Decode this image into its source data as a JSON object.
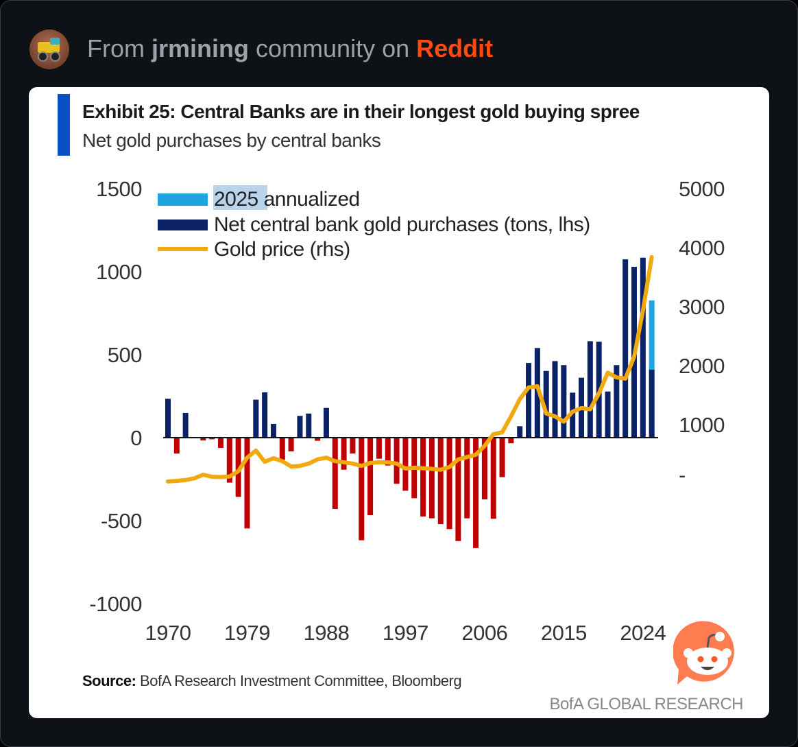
{
  "header": {
    "prefix": "From",
    "community": "jrmining",
    "middle": "community on",
    "platform": "Reddit"
  },
  "colors": {
    "positive": "#0c2266",
    "negative": "#c00000",
    "annualized": "#1ea5e0",
    "gold": "#f0aa10",
    "accent": "#0b4fc4",
    "reddit": "#ff4a12"
  },
  "chart_data": {
    "type": "bar",
    "title": "Exhibit 25: Central Banks are in their longest gold buying spree",
    "subtitle": "Net gold purchases by central banks",
    "x_ticks": [
      "1970",
      "1979",
      "1988",
      "1997",
      "2006",
      "2015",
      "2024"
    ],
    "y_left_ticks": [
      "1500",
      "1000",
      "500",
      "0",
      "-500",
      "-1000"
    ],
    "y_right_ticks": [
      "5000",
      "4000",
      "3000",
      "2000",
      "1000",
      "-"
    ],
    "ylim_left": [
      -1000,
      1500
    ],
    "ylim_right": [
      0,
      5000
    ],
    "legend": [
      {
        "name": "2025 annualized",
        "kind": "bar"
      },
      {
        "name": "Net central bank gold purchases (tons, lhs)",
        "kind": "bar"
      },
      {
        "name": "Gold price (rhs)",
        "kind": "line"
      }
    ],
    "legend_placement": "top-left",
    "years": [
      1970,
      1971,
      1972,
      1973,
      1974,
      1975,
      1976,
      1977,
      1978,
      1979,
      1980,
      1981,
      1982,
      1983,
      1984,
      1985,
      1986,
      1987,
      1988,
      1989,
      1990,
      1991,
      1992,
      1993,
      1994,
      1995,
      1996,
      1997,
      1998,
      1999,
      2000,
      2001,
      2002,
      2003,
      2004,
      2005,
      2006,
      2007,
      2008,
      2009,
      2010,
      2011,
      2012,
      2013,
      2014,
      2015,
      2016,
      2017,
      2018,
      2019,
      2020,
      2021,
      2022,
      2023,
      2024,
      2025
    ],
    "series": [
      {
        "name": "Net central bank gold purchases (tons, lhs)",
        "axis": "left",
        "values": [
          234,
          -96,
          149,
          0,
          -17,
          -10,
          -62,
          -271,
          -357,
          -547,
          229,
          273,
          83,
          -134,
          -83,
          131,
          145,
          -19,
          179,
          -430,
          -193,
          -96,
          -618,
          -467,
          -127,
          -168,
          -278,
          -320,
          -365,
          -475,
          -486,
          -521,
          -551,
          -623,
          -486,
          -665,
          -372,
          -489,
          -238,
          -34,
          69,
          450,
          540,
          402,
          461,
          437,
          271,
          361,
          581,
          578,
          278,
          437,
          1074,
          1029,
          1084,
          409
        ]
      },
      {
        "name": "2025 annualized",
        "axis": "left",
        "years": [
          2025
        ],
        "values": [
          826
        ]
      },
      {
        "name": "Gold price (rhs)",
        "axis": "right",
        "values": [
          36,
          45,
          60,
          90,
          150,
          115,
          110,
          120,
          210,
          440,
          560,
          370,
          430,
          380,
          290,
          300,
          340,
          410,
          440,
          380,
          360,
          340,
          300,
          350,
          360,
          360,
          340,
          256,
          270,
          260,
          250,
          235,
          280,
          410,
          450,
          490,
          640,
          837,
          870,
          1140,
          1430,
          1630,
          1650,
          1190,
          1140,
          1050,
          1220,
          1280,
          1260,
          1530,
          1880,
          1800,
          1780,
          2150,
          2930,
          3840
        ]
      }
    ],
    "source_label": "Source:",
    "source_text": "BofA Research Investment Committee, Bloomberg",
    "brand": "BofA GLOBAL RESEARCH"
  }
}
